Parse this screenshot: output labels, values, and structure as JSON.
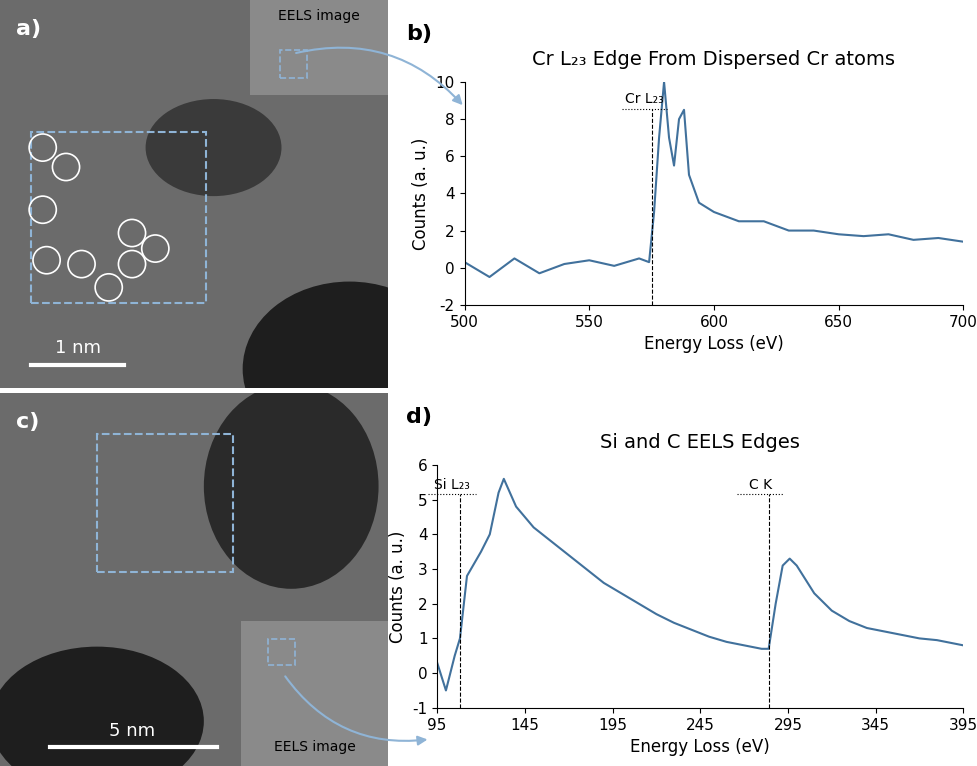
{
  "images": [
    {
      "panel": "a)",
      "scale_bar": "1 nm",
      "inset": "EELS image"
    },
    {
      "panel": "c)",
      "scale_bar": "5 nm",
      "inset": "EELS image"
    }
  ],
  "chart_data": [
    {
      "type": "line",
      "panel": "b)",
      "title": "Cr L₂₃ Edge From Dispersed Cr atoms",
      "x_label": "Energy Loss (eV)",
      "y_label": "Counts (a. u.)",
      "color": "#41719c",
      "x": [
        500,
        510,
        520,
        530,
        540,
        550,
        560,
        570,
        574,
        576,
        578,
        580,
        582,
        584,
        586,
        588,
        590,
        594,
        600,
        610,
        620,
        630,
        640,
        650,
        660,
        670,
        680,
        690,
        700
      ],
      "values": [
        0.3,
        -0.5,
        0.5,
        -0.3,
        0.2,
        0.4,
        0.1,
        0.5,
        0.3,
        3,
        7,
        10,
        7,
        5.5,
        8,
        8.5,
        5,
        3.5,
        3,
        2.5,
        2.5,
        2,
        2,
        1.8,
        1.7,
        1.8,
        1.5,
        1.6,
        1.4
      ],
      "xlim": [
        500,
        700
      ],
      "xticks": [
        500,
        550,
        600,
        650,
        700
      ],
      "ylim": [
        -2,
        10
      ],
      "yticks": [
        -2,
        0,
        2,
        4,
        6,
        8,
        10
      ],
      "grid": false,
      "annotations": [
        {
          "text": "Cr L₂₃",
          "x": 575
        }
      ]
    },
    {
      "type": "line",
      "panel": "d)",
      "title": "Si and C EELS Edges",
      "x_label": "Energy Loss (eV)",
      "y_label": "Counts (a. u.)",
      "color": "#41719c",
      "x": [
        95,
        100,
        105,
        108,
        112,
        120,
        125,
        130,
        133,
        140,
        150,
        160,
        170,
        180,
        190,
        200,
        210,
        220,
        230,
        240,
        250,
        260,
        270,
        280,
        284,
        288,
        292,
        296,
        300,
        310,
        320,
        330,
        340,
        350,
        360,
        370,
        380,
        390,
        395
      ],
      "values": [
        0.3,
        -0.5,
        0.5,
        1.0,
        2.8,
        3.5,
        4,
        5.2,
        5.6,
        4.8,
        4.2,
        3.8,
        3.4,
        3.0,
        2.6,
        2.3,
        2.0,
        1.7,
        1.45,
        1.25,
        1.05,
        0.9,
        0.8,
        0.7,
        0.7,
        2,
        3.1,
        3.3,
        3.1,
        2.3,
        1.8,
        1.5,
        1.3,
        1.2,
        1.1,
        1.0,
        0.95,
        0.85,
        0.8
      ],
      "xlim": [
        95,
        395
      ],
      "xticks": [
        95,
        145,
        195,
        245,
        295,
        345,
        395
      ],
      "ylim": [
        -1,
        6
      ],
      "yticks": [
        -1,
        0,
        1,
        2,
        3,
        4,
        5,
        6
      ],
      "grid": false,
      "annotations": [
        {
          "text": "Si L₂₃",
          "x": 108
        },
        {
          "text": "C K",
          "x": 284
        }
      ]
    }
  ]
}
